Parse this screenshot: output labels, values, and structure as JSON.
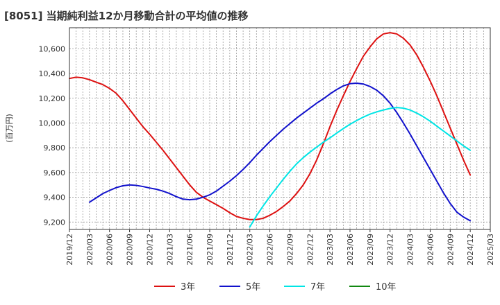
{
  "chart_data": {
    "type": "line",
    "title": "[8051]  当期純利益12か月移動合計の平均値の推移",
    "xlabel": "",
    "ylabel": "(百万円)",
    "ylim": [
      9140,
      10770
    ],
    "grid": true,
    "legend_position": "bottom",
    "x_ticks": [
      "2019/12",
      "2020/03",
      "2020/06",
      "2020/09",
      "2020/12",
      "2021/03",
      "2021/06",
      "2021/09",
      "2021/12",
      "2022/03",
      "2022/06",
      "2022/09",
      "2022/12",
      "2023/03",
      "2023/06",
      "2023/09",
      "2023/12",
      "2024/03",
      "2024/06",
      "2024/09",
      "2024/12",
      "2025/03"
    ],
    "y_ticks": [
      9200,
      9400,
      9600,
      9800,
      10000,
      10200,
      10400,
      10600
    ],
    "y_tick_labels": [
      "9,200",
      "9,400",
      "9,600",
      "9,800",
      "10,000",
      "10,200",
      "10,400",
      "10,600"
    ],
    "series": [
      {
        "name": "3年",
        "color": "#dd1111",
        "x": [
          "2019/12",
          "2020/01",
          "2020/02",
          "2020/03",
          "2020/04",
          "2020/05",
          "2020/06",
          "2020/07",
          "2020/08",
          "2020/09",
          "2020/10",
          "2020/11",
          "2020/12",
          "2021/01",
          "2021/02",
          "2021/03",
          "2021/04",
          "2021/05",
          "2021/06",
          "2021/07",
          "2021/08",
          "2021/09",
          "2021/10",
          "2021/11",
          "2021/12",
          "2022/01",
          "2022/02",
          "2022/03",
          "2022/04",
          "2022/05",
          "2022/06",
          "2022/07",
          "2022/08",
          "2022/09",
          "2022/10",
          "2022/11",
          "2022/12",
          "2023/01",
          "2023/02",
          "2023/03",
          "2023/04",
          "2023/05",
          "2023/06",
          "2023/07",
          "2023/08",
          "2023/09",
          "2023/10",
          "2023/11",
          "2023/12",
          "2024/01",
          "2024/02",
          "2024/03",
          "2024/04",
          "2024/05",
          "2024/06",
          "2024/07",
          "2024/08",
          "2024/09",
          "2024/10",
          "2024/11",
          "2024/12"
        ],
        "values": [
          10360,
          10370,
          10365,
          10350,
          10330,
          10310,
          10280,
          10240,
          10180,
          10110,
          10040,
          9970,
          9910,
          9845,
          9780,
          9710,
          9640,
          9570,
          9500,
          9440,
          9400,
          9370,
          9340,
          9310,
          9275,
          9245,
          9230,
          9220,
          9220,
          9230,
          9255,
          9285,
          9325,
          9370,
          9430,
          9500,
          9590,
          9700,
          9830,
          9970,
          10100,
          10220,
          10335,
          10440,
          10540,
          10615,
          10680,
          10720,
          10730,
          10720,
          10685,
          10630,
          10550,
          10450,
          10340,
          10220,
          10090,
          9960,
          9830,
          9700,
          9580
        ]
      },
      {
        "name": "5年",
        "color": "#1111cc",
        "x": [
          "2020/03",
          "2020/04",
          "2020/05",
          "2020/06",
          "2020/07",
          "2020/08",
          "2020/09",
          "2020/10",
          "2020/11",
          "2020/12",
          "2021/01",
          "2021/02",
          "2021/03",
          "2021/04",
          "2021/05",
          "2021/06",
          "2021/07",
          "2021/08",
          "2021/09",
          "2021/10",
          "2021/11",
          "2021/12",
          "2022/01",
          "2022/02",
          "2022/03",
          "2022/04",
          "2022/05",
          "2022/06",
          "2022/07",
          "2022/08",
          "2022/09",
          "2022/10",
          "2022/11",
          "2022/12",
          "2023/01",
          "2023/02",
          "2023/03",
          "2023/04",
          "2023/05",
          "2023/06",
          "2023/07",
          "2023/08",
          "2023/09",
          "2023/10",
          "2023/11",
          "2023/12",
          "2024/01",
          "2024/02",
          "2024/03",
          "2024/04",
          "2024/05",
          "2024/06",
          "2024/07",
          "2024/08",
          "2024/09",
          "2024/10",
          "2024/11",
          "2024/12"
        ],
        "values": [
          9360,
          9395,
          9430,
          9455,
          9478,
          9493,
          9500,
          9496,
          9487,
          9475,
          9465,
          9450,
          9430,
          9405,
          9385,
          9380,
          9385,
          9400,
          9420,
          9450,
          9490,
          9530,
          9575,
          9625,
          9680,
          9740,
          9795,
          9850,
          9900,
          9950,
          9995,
          10040,
          10080,
          10120,
          10160,
          10195,
          10235,
          10270,
          10300,
          10318,
          10322,
          10315,
          10295,
          10265,
          10220,
          10160,
          10085,
          10000,
          9910,
          9815,
          9720,
          9625,
          9530,
          9435,
          9350,
          9280,
          9240,
          9210
        ]
      },
      {
        "name": "7年",
        "color": "#00e5e5",
        "x": [
          "2022/03",
          "2022/04",
          "2022/05",
          "2022/06",
          "2022/07",
          "2022/08",
          "2022/09",
          "2022/10",
          "2022/11",
          "2022/12",
          "2023/01",
          "2023/02",
          "2023/03",
          "2023/04",
          "2023/05",
          "2023/06",
          "2023/07",
          "2023/08",
          "2023/09",
          "2023/10",
          "2023/11",
          "2023/12",
          "2024/01",
          "2024/02",
          "2024/03",
          "2024/04",
          "2024/05",
          "2024/06",
          "2024/07",
          "2024/08",
          "2024/09",
          "2024/10",
          "2024/11",
          "2024/12"
        ],
        "values": [
          9160,
          9250,
          9330,
          9405,
          9475,
          9545,
          9610,
          9670,
          9720,
          9765,
          9805,
          9845,
          9880,
          9918,
          9955,
          9990,
          10020,
          10048,
          10072,
          10090,
          10105,
          10118,
          10125,
          10120,
          10105,
          10080,
          10050,
          10015,
          9975,
          9935,
          9895,
          9855,
          9815,
          9780
        ]
      },
      {
        "name": "10年",
        "color": "#118811",
        "x": [],
        "values": []
      }
    ]
  }
}
